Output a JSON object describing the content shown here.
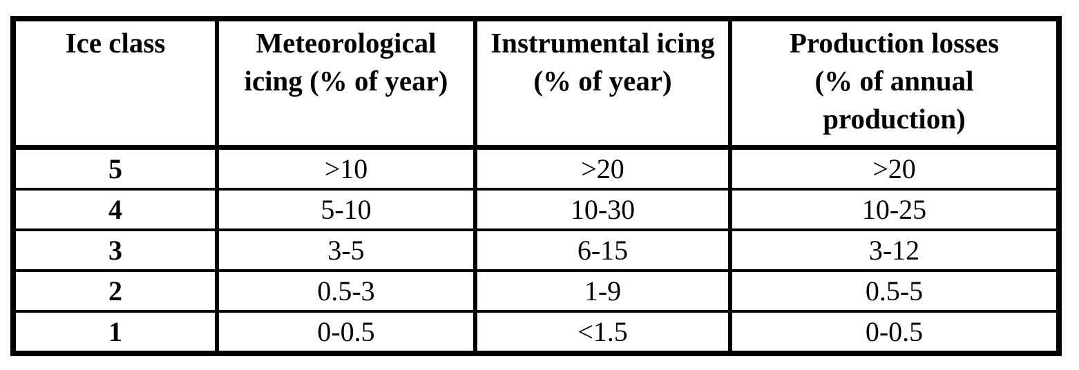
{
  "colors": {
    "background": "#ffffff",
    "border": "#000000",
    "text": "#000000"
  },
  "table": {
    "headers": [
      {
        "id": "ice-class",
        "lines": [
          "Ice class"
        ]
      },
      {
        "id": "meteorological-icing",
        "lines": [
          "Meteorological",
          "icing (% of year)"
        ]
      },
      {
        "id": "instrumental-icing",
        "lines": [
          "Instrumental icing",
          "(% of year)"
        ]
      },
      {
        "id": "production-losses",
        "lines": [
          "Production losses",
          "(% of annual",
          "production)"
        ]
      }
    ],
    "rows": [
      {
        "cells": [
          "5",
          ">10",
          ">20",
          ">20"
        ]
      },
      {
        "cells": [
          "4",
          "5-10",
          "10-30",
          "10-25"
        ]
      },
      {
        "cells": [
          "3",
          "3-5",
          "6-15",
          "3-12"
        ]
      },
      {
        "cells": [
          "2",
          "0.5-3",
          "1-9",
          "0.5-5"
        ]
      },
      {
        "cells": [
          "1",
          "0-0.5",
          "<1.5",
          "0-0.5"
        ]
      }
    ]
  },
  "chart_data": {
    "type": "table",
    "columns": [
      "Ice class",
      "Meteorological icing (% of year)",
      "Instrumental icing (% of year)",
      "Production losses (% of annual production)"
    ],
    "rows": [
      [
        "5",
        ">10",
        ">20",
        ">20"
      ],
      [
        "4",
        "5-10",
        "10-30",
        "10-25"
      ],
      [
        "3",
        "3-5",
        "6-15",
        "3-12"
      ],
      [
        "2",
        "0.5-3",
        "1-9",
        "0.5-5"
      ],
      [
        "1",
        "0-0.5",
        "<1.5",
        "0-0.5"
      ]
    ]
  }
}
